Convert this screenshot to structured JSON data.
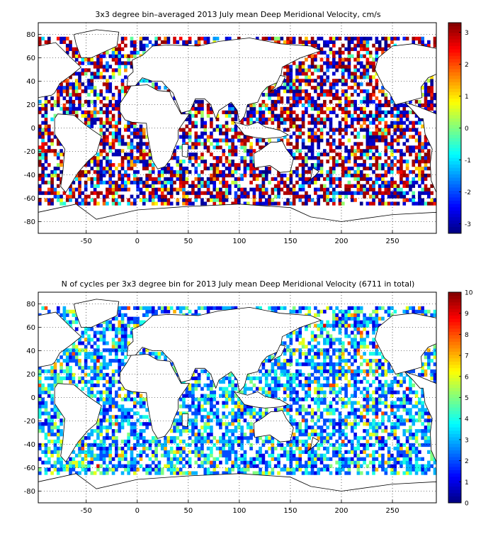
{
  "chart_data": [
    {
      "type": "heatmap",
      "title": "3x3 degree bin–averaged 2013 July mean Deep Meridional Velocity, cm/s",
      "x_ticks": [
        "-50",
        "0",
        "50",
        "100",
        "150",
        "200",
        "250"
      ],
      "x_tick_values": [
        -50,
        0,
        50,
        100,
        150,
        200,
        250
      ],
      "y_ticks": [
        "80",
        "60",
        "40",
        "20",
        "0",
        "-20",
        "-40",
        "-60",
        "-80"
      ],
      "y_tick_values": [
        80,
        60,
        40,
        20,
        0,
        -20,
        -40,
        -60,
        -80
      ],
      "xlim": [
        -97,
        293
      ],
      "ylim": [
        -90,
        90
      ],
      "bin_size_deg": 3,
      "colorbar": {
        "min": -3.3,
        "max": 3.3,
        "ticks": [
          "3",
          "2",
          "1",
          "0",
          "-1",
          "-2",
          "-3"
        ],
        "tick_values": [
          3,
          2,
          1,
          0,
          -1,
          -2,
          -3
        ],
        "colormap": "jet"
      },
      "grid": true
    },
    {
      "type": "heatmap",
      "title": "N of cycles per 3x3 degree bin for 2013 July mean Deep Meridional Velocity (6711 in total)",
      "x_ticks": [
        "-50",
        "0",
        "50",
        "100",
        "150",
        "200",
        "250"
      ],
      "x_tick_values": [
        -50,
        0,
        50,
        100,
        150,
        200,
        250
      ],
      "y_ticks": [
        "80",
        "60",
        "40",
        "20",
        "0",
        "-20",
        "-40",
        "-60",
        "-80"
      ],
      "y_tick_values": [
        80,
        60,
        40,
        20,
        0,
        -20,
        -40,
        -60,
        -80
      ],
      "xlim": [
        -97,
        293
      ],
      "ylim": [
        -90,
        90
      ],
      "bin_size_deg": 3,
      "colorbar": {
        "min": 0,
        "max": 10,
        "ticks": [
          "10",
          "9",
          "8",
          "7",
          "6",
          "5",
          "4",
          "3",
          "2",
          "1",
          "0"
        ],
        "tick_values": [
          10,
          9,
          8,
          7,
          6,
          5,
          4,
          3,
          2,
          1,
          0
        ],
        "colormap": "jet"
      },
      "grid": true
    }
  ]
}
